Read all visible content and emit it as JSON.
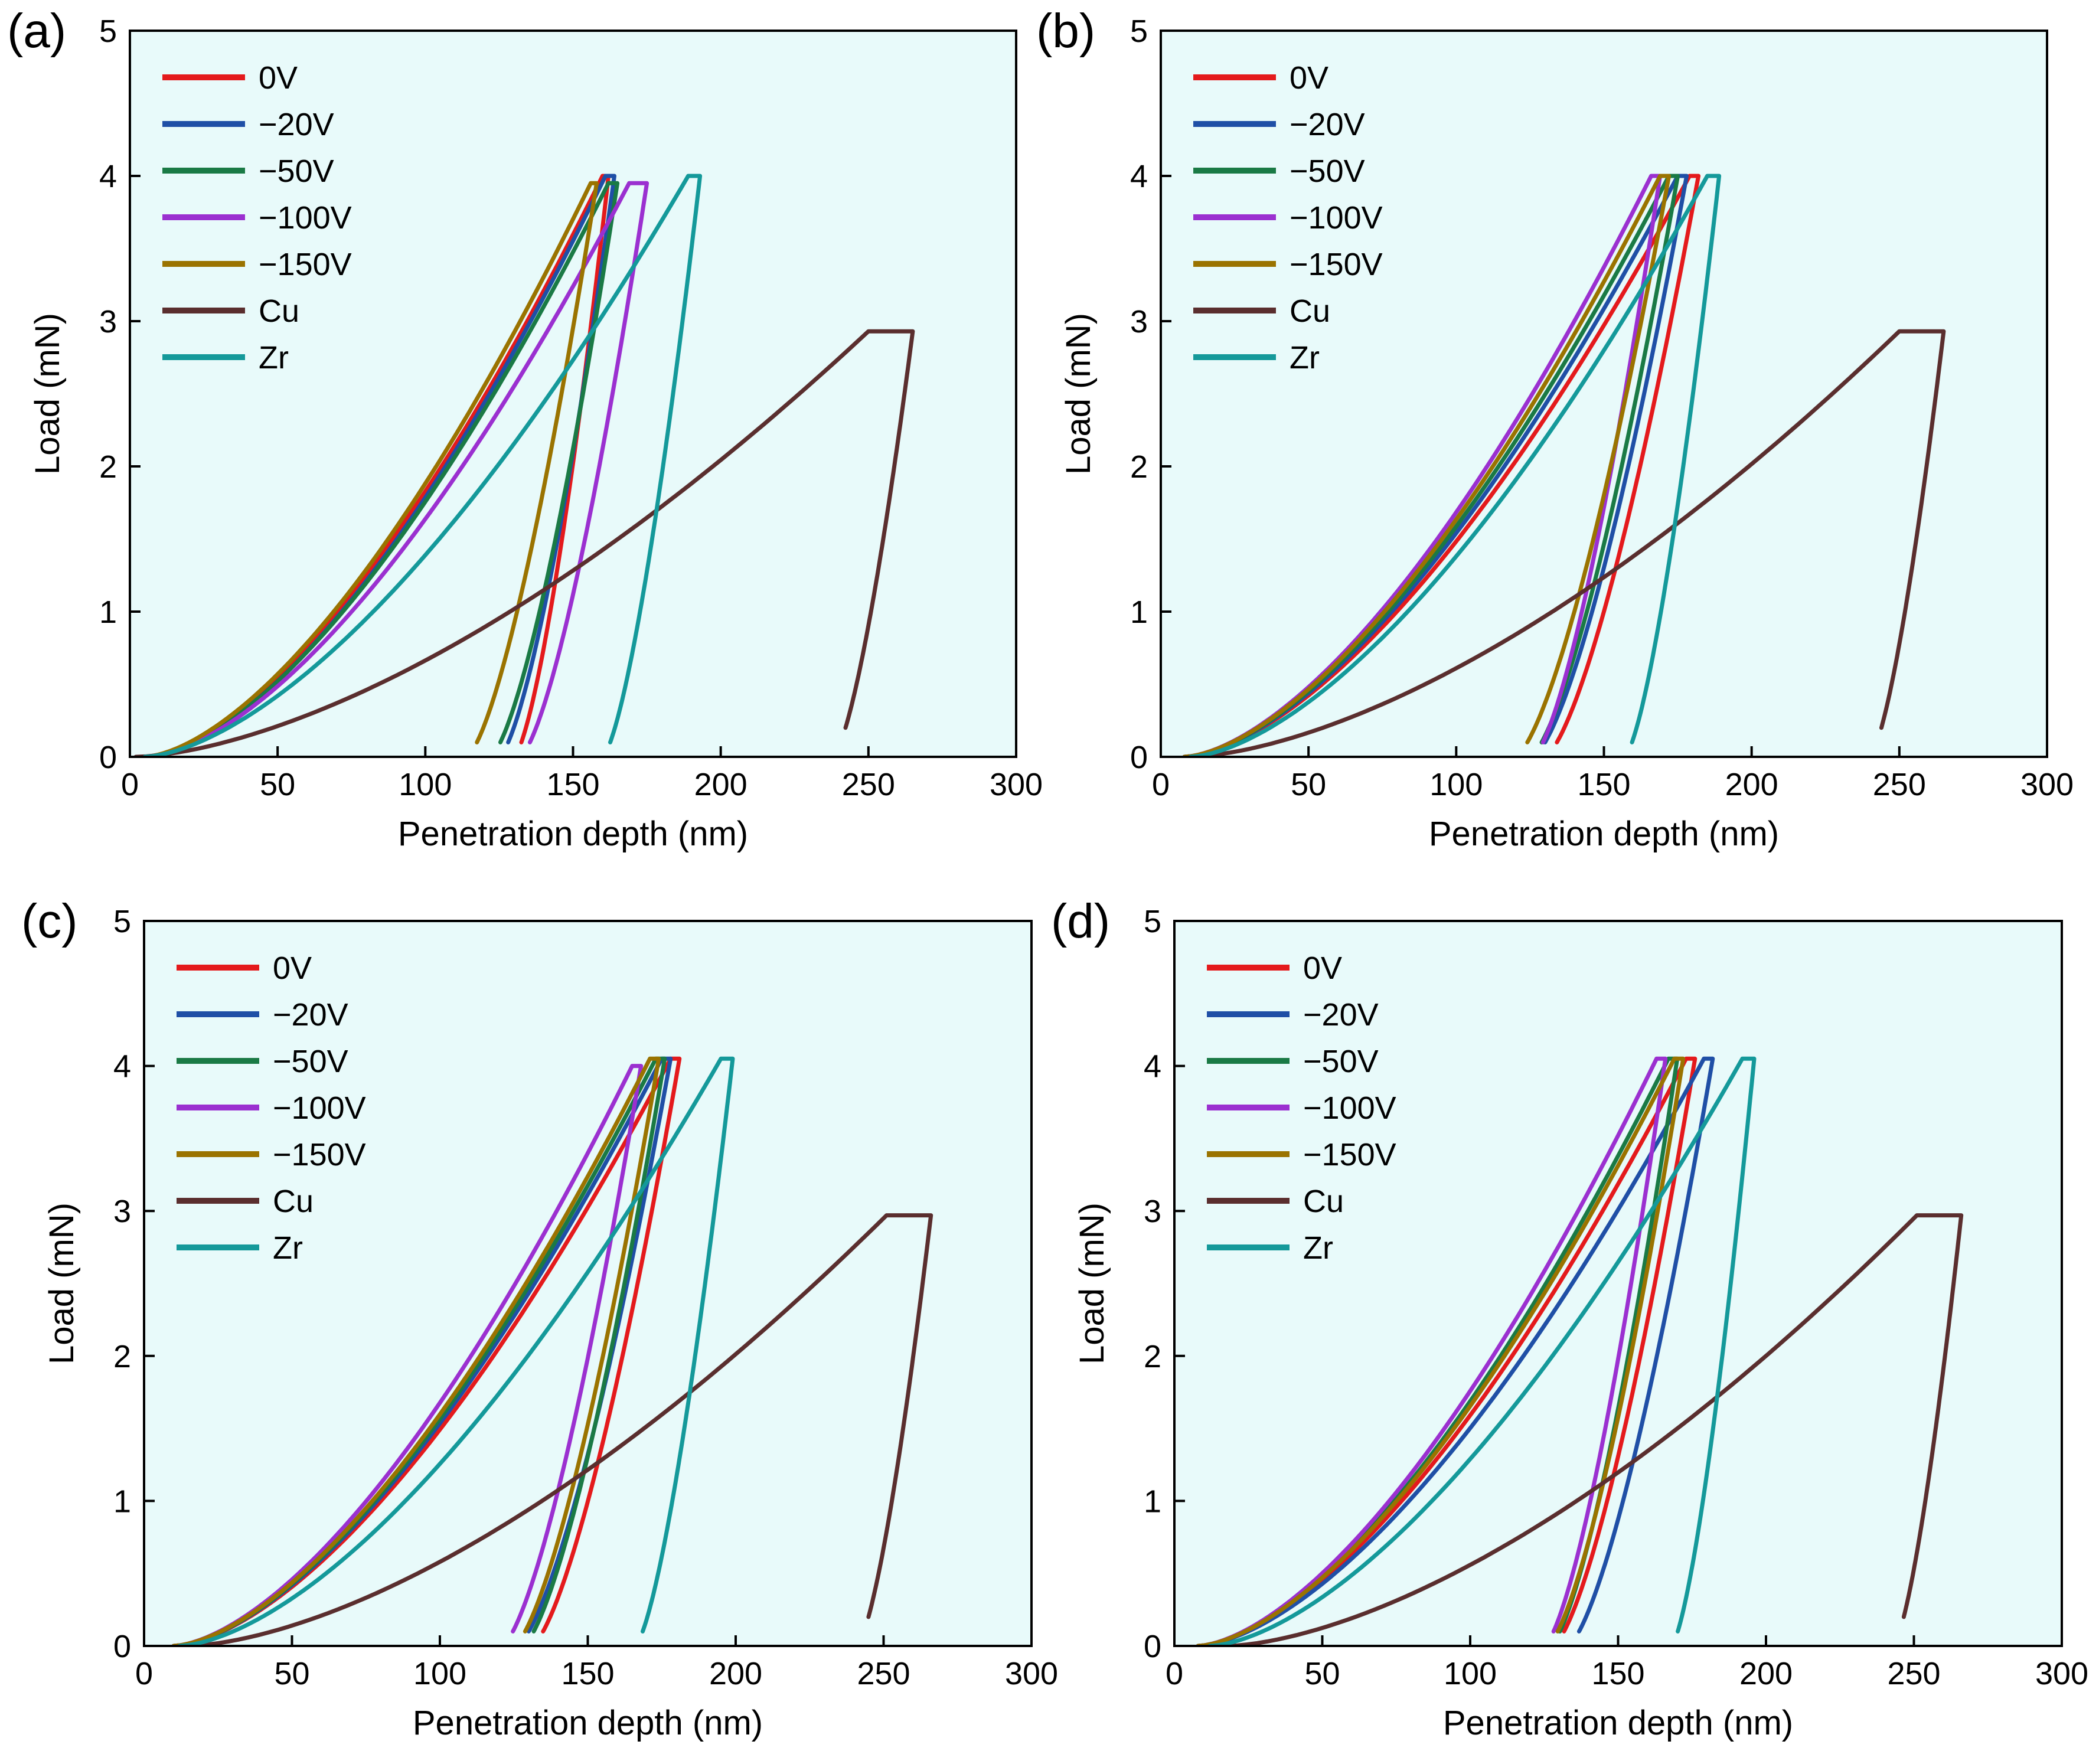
{
  "figure": {
    "background": "#ffffff",
    "plot_background": "#e8fafa"
  },
  "series_colors": {
    "0V": "#e41a1c",
    "−20V": "#1f4fa6",
    "−50V": "#1a7a45",
    "−100V": "#9b30d0",
    "−150V": "#9a7300",
    "Cu": "#5a2e2e",
    "Zr": "#14999a"
  },
  "chart_data": [
    {
      "type": "line",
      "panel_label": "(a)",
      "xlabel": "Penetration depth (nm)",
      "ylabel": "Load (mN)",
      "xlim": [
        0,
        300
      ],
      "ylim": [
        0,
        5
      ],
      "xticks": [
        "0",
        "50",
        "100",
        "150",
        "200",
        "250",
        "300"
      ],
      "yticks": [
        "0",
        "1",
        "2",
        "3",
        "4",
        "5"
      ],
      "legend_position": "top-left",
      "series": [
        {
          "name": "0V",
          "h0": 5,
          "hmax": 162,
          "pmax": 4.0,
          "hf": 130,
          "hold": 2
        },
        {
          "name": "−20V",
          "h0": 7,
          "hmax": 164,
          "pmax": 4.0,
          "hf": 125,
          "hold": 3
        },
        {
          "name": "−50V",
          "h0": 6,
          "hmax": 165,
          "pmax": 3.95,
          "hf": 122,
          "hold": 3
        },
        {
          "name": "−100V",
          "h0": 6,
          "hmax": 175,
          "pmax": 3.95,
          "hf": 132,
          "hold": 6
        },
        {
          "name": "−150V",
          "h0": 5,
          "hmax": 158,
          "pmax": 3.95,
          "hf": 114,
          "hold": 2
        },
        {
          "name": "Cu",
          "h0": 2,
          "hmax": 265,
          "pmax": 2.93,
          "hf": 238,
          "hold": 15
        },
        {
          "name": "Zr",
          "h0": 5,
          "hmax": 193,
          "pmax": 4.0,
          "hf": 160,
          "hold": 4
        }
      ]
    },
    {
      "type": "line",
      "panel_label": "(b)",
      "xlabel": "Penetration depth (nm)",
      "ylabel": "Load (mN)",
      "xlim": [
        0,
        300
      ],
      "ylim": [
        0,
        5
      ],
      "xticks": [
        "0",
        "50",
        "100",
        "150",
        "200",
        "250",
        "300"
      ],
      "yticks": [
        "0",
        "1",
        "2",
        "3",
        "4",
        "5"
      ],
      "legend_position": "top-left",
      "series": [
        {
          "name": "0V",
          "h0": 8,
          "hmax": 182,
          "pmax": 4.0,
          "hf": 130,
          "hold": 3
        },
        {
          "name": "−20V",
          "h0": 8,
          "hmax": 178,
          "pmax": 4.0,
          "hf": 126,
          "hold": 3
        },
        {
          "name": "−50V",
          "h0": 8,
          "hmax": 175,
          "pmax": 4.0,
          "hf": 125,
          "hold": 3
        },
        {
          "name": "−100V",
          "h0": 8,
          "hmax": 169,
          "pmax": 4.0,
          "hf": 126,
          "hold": 3
        },
        {
          "name": "−150V",
          "h0": 8,
          "hmax": 172,
          "pmax": 4.0,
          "hf": 120,
          "hold": 3
        },
        {
          "name": "Cu",
          "h0": 10,
          "hmax": 265,
          "pmax": 2.93,
          "hf": 240,
          "hold": 15
        },
        {
          "name": "Zr",
          "h0": 10,
          "hmax": 189,
          "pmax": 4.0,
          "hf": 157,
          "hold": 4
        }
      ]
    },
    {
      "type": "line",
      "panel_label": "(c)",
      "xlabel": "Penetration depth (nm)",
      "ylabel": "Load (mN)",
      "xlim": [
        0,
        300
      ],
      "ylim": [
        0,
        5
      ],
      "xticks": [
        "0",
        "50",
        "100",
        "150",
        "200",
        "250",
        "300"
      ],
      "yticks": [
        "0",
        "1",
        "2",
        "3",
        "4",
        "5"
      ],
      "legend_position": "top-left",
      "series": [
        {
          "name": "0V",
          "h0": 10,
          "hmax": 181,
          "pmax": 4.05,
          "hf": 131,
          "hold": 3
        },
        {
          "name": "−20V",
          "h0": 10,
          "hmax": 178,
          "pmax": 4.05,
          "hf": 126,
          "hold": 3
        },
        {
          "name": "−50V",
          "h0": 10,
          "hmax": 176,
          "pmax": 4.05,
          "hf": 128,
          "hold": 3
        },
        {
          "name": "−100V",
          "h0": 10,
          "hmax": 168,
          "pmax": 4.0,
          "hf": 121,
          "hold": 3
        },
        {
          "name": "−150V",
          "h0": 10,
          "hmax": 174,
          "pmax": 4.05,
          "hf": 125,
          "hold": 3
        },
        {
          "name": "Cu",
          "h0": 15,
          "hmax": 266,
          "pmax": 2.97,
          "hf": 241,
          "hold": 15
        },
        {
          "name": "Zr",
          "h0": 12,
          "hmax": 199,
          "pmax": 4.05,
          "hf": 166,
          "hold": 4
        }
      ]
    },
    {
      "type": "line",
      "panel_label": "(d)",
      "xlabel": "Penetration depth (nm)",
      "ylabel": "Load (mN)",
      "xlim": [
        0,
        300
      ],
      "ylim": [
        0,
        5
      ],
      "xticks": [
        "0",
        "50",
        "100",
        "150",
        "200",
        "250",
        "300"
      ],
      "yticks": [
        "0",
        "1",
        "2",
        "3",
        "4",
        "5"
      ],
      "legend_position": "top-left",
      "series": [
        {
          "name": "0V",
          "h0": 8,
          "hmax": 176,
          "pmax": 4.05,
          "hf": 128,
          "hold": 3
        },
        {
          "name": "−20V",
          "h0": 8,
          "hmax": 182,
          "pmax": 4.05,
          "hf": 133,
          "hold": 3
        },
        {
          "name": "−50V",
          "h0": 8,
          "hmax": 170,
          "pmax": 4.05,
          "hf": 127,
          "hold": 3
        },
        {
          "name": "−100V",
          "h0": 8,
          "hmax": 166,
          "pmax": 4.05,
          "hf": 125,
          "hold": 3
        },
        {
          "name": "−150V",
          "h0": 8,
          "hmax": 172,
          "pmax": 4.05,
          "hf": 126,
          "hold": 3
        },
        {
          "name": "Cu",
          "h0": 18,
          "hmax": 266,
          "pmax": 2.97,
          "hf": 243,
          "hold": 15
        },
        {
          "name": "Zr",
          "h0": 12,
          "hmax": 196,
          "pmax": 4.05,
          "hf": 168,
          "hold": 4
        }
      ]
    }
  ]
}
